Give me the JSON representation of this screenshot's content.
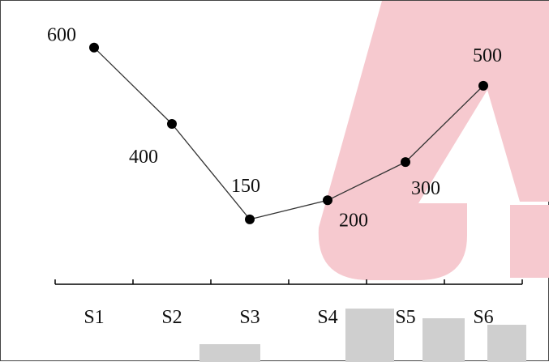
{
  "chart_data": {
    "type": "line",
    "categories": [
      "S1",
      "S2",
      "S3",
      "S4",
      "S5",
      "S6"
    ],
    "values": [
      600,
      400,
      150,
      200,
      300,
      500
    ],
    "data_labels": [
      "600",
      "400",
      "150",
      "200",
      "300",
      "500"
    ],
    "ylim": [
      -20,
      680
    ],
    "grid": false,
    "colors": {
      "line": "#333333",
      "marker": "#000000",
      "axis": "#000000",
      "watermark_red": "#f6c9cf",
      "watermark_gray": "#cfcfcf"
    }
  }
}
